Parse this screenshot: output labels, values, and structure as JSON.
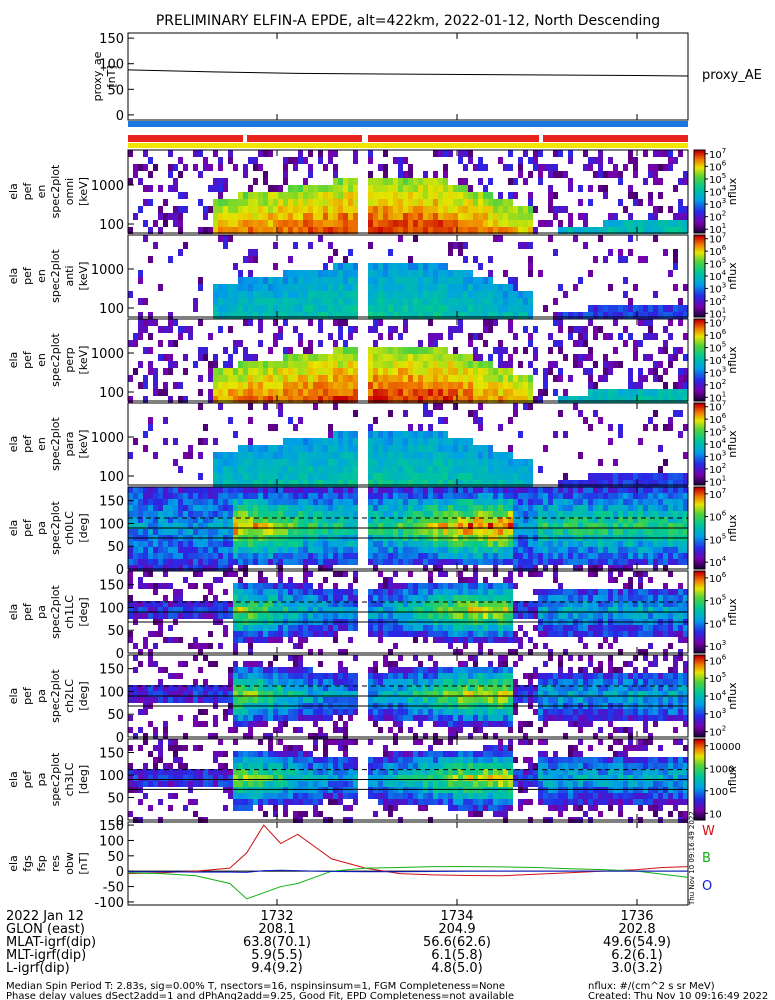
{
  "title": "PRELIMINARY ELFIN-A EPDE, alt=422km, 2022-01-12, North Descending",
  "colors": {
    "bar_red": "#e8241c",
    "bar_blue": "#1a78e0",
    "bar_yellow": "#f2e600",
    "bx": "#d01010",
    "by": "#10b010",
    "bz": "#1020d0"
  },
  "chart_data": [
    {
      "type": "line",
      "ylabel": [
        "proxy_ae",
        "[nT]"
      ],
      "ylim": [
        -10,
        160
      ],
      "yticks": [
        0,
        50,
        100,
        150
      ],
      "x": [
        1730.0,
        1731.0,
        1732.0,
        1733.0,
        1734.0,
        1735.0,
        1736.0,
        1736.6
      ],
      "series": [
        {
          "name": "proxy_AE",
          "values": [
            88,
            84,
            81,
            80,
            79,
            78,
            77,
            76
          ]
        }
      ]
    },
    {
      "type": "heatmap",
      "ylabel": [
        "ela",
        "pef",
        "en",
        "spec2plot",
        "omni",
        "[keV]"
      ],
      "yscale": "log",
      "yticks": [
        100,
        1000
      ],
      "colorbar": {
        "label": "nflux",
        "scale": "log",
        "ticks": [
          "10^1",
          "10^2",
          "10^3",
          "10^4",
          "10^5",
          "10^6",
          "10^7"
        ]
      }
    },
    {
      "type": "heatmap",
      "ylabel": [
        "ela",
        "pef",
        "en",
        "spec2plot",
        "anti",
        "[keV]"
      ],
      "yscale": "log",
      "yticks": [
        100,
        1000
      ],
      "colorbar": {
        "label": "nflux",
        "scale": "log",
        "ticks": [
          "10^1",
          "10^2",
          "10^3",
          "10^4",
          "10^5",
          "10^6",
          "10^7"
        ]
      }
    },
    {
      "type": "heatmap",
      "ylabel": [
        "ela",
        "pef",
        "en",
        "spec2plot",
        "perp",
        "[keV]"
      ],
      "yscale": "log",
      "yticks": [
        100,
        1000
      ],
      "colorbar": {
        "label": "nflux",
        "scale": "log",
        "ticks": [
          "10^1",
          "10^2",
          "10^3",
          "10^4",
          "10^5",
          "10^6",
          "10^7"
        ]
      }
    },
    {
      "type": "heatmap",
      "ylabel": [
        "ela",
        "pef",
        "en",
        "spec2plot",
        "para",
        "[keV]"
      ],
      "yscale": "log",
      "yticks": [
        100,
        1000
      ],
      "colorbar": {
        "label": "nflux",
        "scale": "log",
        "ticks": [
          "10^1",
          "10^2",
          "10^3",
          "10^4",
          "10^5",
          "10^6",
          "10^7"
        ]
      }
    },
    {
      "type": "heatmap",
      "ylabel": [
        "ela",
        "pef",
        "pa",
        "spec2plot",
        "ch0LC",
        "[deg]"
      ],
      "yticks": [
        0,
        50,
        100,
        150
      ],
      "colorbar": {
        "label": "nflux",
        "scale": "log",
        "ticks": [
          "10^4",
          "10^5",
          "10^6",
          "10^7"
        ]
      }
    },
    {
      "type": "heatmap",
      "ylabel": [
        "ela",
        "pef",
        "pa",
        "spec2plot",
        "ch1LC",
        "[deg]"
      ],
      "yticks": [
        0,
        50,
        100,
        150
      ],
      "colorbar": {
        "label": "nflux",
        "scale": "log",
        "ticks": [
          "10^3",
          "10^4",
          "10^5",
          "10^6"
        ]
      }
    },
    {
      "type": "heatmap",
      "ylabel": [
        "ela",
        "pef",
        "pa",
        "spec2plot",
        "ch2LC",
        "[deg]"
      ],
      "yticks": [
        0,
        50,
        100,
        150
      ],
      "colorbar": {
        "label": "nflux",
        "scale": "log",
        "ticks": [
          "10^2",
          "10^3",
          "10^4",
          "10^5",
          "10^6"
        ]
      }
    },
    {
      "type": "heatmap",
      "ylabel": [
        "ela",
        "pef",
        "pa",
        "spec2plot",
        "ch3LC",
        "[deg]"
      ],
      "yticks": [
        0,
        50,
        100,
        150
      ],
      "colorbar": {
        "label": "nflux",
        "scale": "log",
        "ticks": [
          "10",
          "100",
          "1000",
          "10000"
        ]
      }
    },
    {
      "type": "line",
      "ylabel": [
        "ela",
        "fgs",
        "fsp",
        "res",
        "obw",
        "[nT]"
      ],
      "ylim": [
        -110,
        160
      ],
      "yticks": [
        -100,
        -50,
        0,
        50,
        100,
        150
      ],
      "x": [
        1730.0,
        1730.4,
        1730.8,
        1731.2,
        1731.4,
        1731.6,
        1731.8,
        1732.0,
        1732.2,
        1732.4,
        1732.8,
        1733.2,
        1733.6,
        1734.0,
        1734.4,
        1734.8,
        1735.2,
        1735.6,
        1736.0,
        1736.3,
        1736.6
      ],
      "series": [
        {
          "name": "",
          "values": [
            -8,
            -5,
            0,
            10,
            60,
            150,
            90,
            120,
            80,
            40,
            10,
            -8,
            -12,
            -14,
            -15,
            -10,
            -5,
            0,
            5,
            12,
            15
          ]
        },
        {
          "name": "",
          "values": [
            -5,
            -8,
            -15,
            -40,
            -90,
            -70,
            -50,
            -40,
            -20,
            0,
            10,
            12,
            15,
            15,
            14,
            12,
            8,
            5,
            0,
            -10,
            -20
          ]
        },
        {
          "name": "",
          "values": [
            -2,
            -2,
            -3,
            -3,
            -4,
            2,
            3,
            2,
            0,
            -1,
            -2,
            -2,
            -1,
            0,
            0,
            0,
            0,
            0,
            0,
            0,
            0
          ]
        }
      ]
    }
  ],
  "legend_letters": [
    "W",
    "B",
    "O"
  ],
  "proxy_label": "proxy_AE",
  "xaxis": {
    "ticks": [
      "1732",
      "1734",
      "1736"
    ],
    "xlim": [
      1730.0,
      1736.6
    ]
  },
  "orbit": {
    "labels": [
      "2022 Jan 12",
      "GLON (east)",
      "MLAT-igrf(dip)",
      "MLT-igrf(dip)",
      "L-igrf(dip)"
    ],
    "columns": [
      [
        "1732",
        "208.1",
        "63.8(70.1)",
        "5.9(5.5)",
        "9.4(9.2)"
      ],
      [
        "1734",
        "204.9",
        "56.6(62.6)",
        "6.1(5.8)",
        "4.8(5.0)"
      ],
      [
        "1736",
        "202.8",
        "49.6(54.9)",
        "6.2(6.1)",
        "3.0(3.2)"
      ]
    ]
  },
  "footer": {
    "left1": "Median Spin Period T: 2.83s, sig=0.00% T, nsectors=16, nspinsinsum=1, FGM Completeness=None",
    "left2": "Phase delay values dSect2add=1 and dPhAng2add=9.25, Good Fit, EPD Completeness=not available",
    "right1": "nflux: #/(cm^2 s sr MeV)",
    "right2": "Created: Thu Nov 10 09:16:49 2022",
    "vertical": "Thu Nov 10 09:16:49 2022"
  }
}
